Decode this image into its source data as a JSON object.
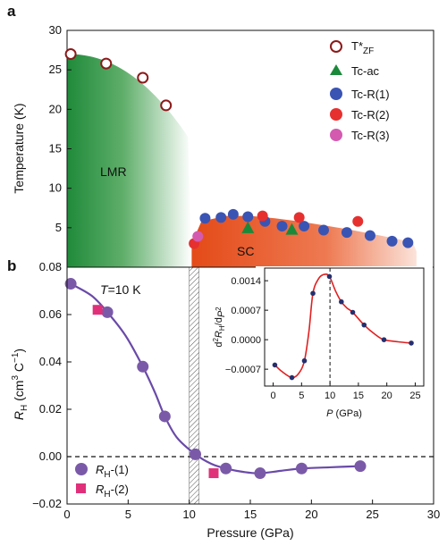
{
  "chart_data": [
    {
      "panel": "a",
      "type": "scatter",
      "ylabel": "Temperature (K)",
      "xlim": [
        0,
        30
      ],
      "ylim": [
        0,
        30
      ],
      "yticks": [
        5,
        10,
        15,
        20,
        25,
        30
      ],
      "regions": [
        {
          "label": "LMR",
          "color": "#2e8b3c"
        },
        {
          "label": "SC",
          "color": "#e8541e"
        }
      ],
      "series": [
        {
          "name": "T*",
          "sub": "ZF",
          "marker": "open-circle",
          "color": "#8b1a1a",
          "x": [
            0.3,
            3.2,
            6.2,
            8.1
          ],
          "y": [
            27.0,
            25.8,
            24.0,
            20.5
          ]
        },
        {
          "name": "Tc-ac",
          "marker": "triangle",
          "color": "#1a8a3a",
          "x": [
            14.8,
            18.4
          ],
          "y": [
            5.0,
            4.8
          ]
        },
        {
          "name": "Tc-R(1)",
          "marker": "circle",
          "color": "#3a54b4",
          "x": [
            11.3,
            12.6,
            13.6,
            14.8,
            16.2,
            17.6,
            19.4,
            21.0,
            22.9,
            24.8,
            26.6,
            27.9
          ],
          "y": [
            6.2,
            6.3,
            6.7,
            6.4,
            5.8,
            5.2,
            5.2,
            4.7,
            4.4,
            4.0,
            3.3,
            3.1
          ]
        },
        {
          "name": "Tc-R(2)",
          "marker": "circle",
          "color": "#e63030",
          "x": [
            10.4,
            16.0,
            19.0,
            23.8
          ],
          "y": [
            3.0,
            6.5,
            6.3,
            5.8
          ]
        },
        {
          "name": "Tc-R(3)",
          "marker": "circle",
          "color": "#d45ab0",
          "x": [
            10.7
          ],
          "y": [
            3.9
          ]
        }
      ]
    },
    {
      "panel": "b",
      "type": "scatter",
      "xlabel": "Pressure (GPa)",
      "ylabel": "R_H (cm3 C-1)",
      "xlim": [
        0,
        30
      ],
      "ylim": [
        -0.02,
        0.08
      ],
      "xticks": [
        0,
        5,
        10,
        15,
        20,
        25,
        30
      ],
      "yticks": [
        -0.02,
        0.0,
        0.02,
        0.04,
        0.06,
        0.08
      ],
      "annotation": "T=10 K",
      "series": [
        {
          "name": "RH-(1)",
          "marker": "circle",
          "color": "#7a5aa8",
          "x": [
            0.3,
            3.3,
            6.2,
            8.0,
            10.5,
            13.0,
            15.8,
            19.2,
            24.0
          ],
          "y": [
            0.073,
            0.061,
            0.038,
            0.017,
            0.001,
            -0.005,
            -0.007,
            -0.005,
            -0.004
          ]
        },
        {
          "name": "RH-(2)",
          "marker": "square",
          "color": "#e0307a",
          "x": [
            2.5,
            12.0
          ],
          "y": [
            0.062,
            -0.007
          ]
        }
      ],
      "fit_curve": {
        "color": "#6a4aa8",
        "x": [
          0.3,
          2.0,
          3.3,
          4.8,
          6.2,
          7.2,
          8.0,
          9.0,
          10.5,
          11.8,
          13.0,
          14.5,
          15.8,
          17.5,
          19.2,
          21.5,
          24.0
        ],
        "y": [
          0.073,
          0.068,
          0.061,
          0.051,
          0.038,
          0.027,
          0.017,
          0.008,
          0.001,
          -0.003,
          -0.005,
          -0.0065,
          -0.007,
          -0.006,
          -0.005,
          -0.0045,
          -0.004
        ]
      },
      "critical_pressure_band": [
        10.0,
        10.8
      ]
    },
    {
      "panel": "inset",
      "type": "line",
      "xlabel": "P (GPa)",
      "ylabel": "d2RH/dP2",
      "xlim": [
        -1.5,
        26.5
      ],
      "ylim": [
        -0.0011,
        0.0017
      ],
      "xticks": [
        0,
        5,
        10,
        15,
        20,
        25
      ],
      "yticks": [
        -0.0007,
        0.0,
        0.0007,
        0.0014
      ],
      "ytick_labels": [
        "-0.0007",
        "0.0000",
        "0.0007",
        "0.0014"
      ],
      "marked_x": 10,
      "series": [
        {
          "name": "d2RH/dP2",
          "color": "#24306e",
          "line_color": "#e02020",
          "x": [
            0.3,
            3.3,
            5.5,
            7.0,
            9.9,
            12.0,
            14.0,
            16.0,
            19.5,
            24.3
          ],
          "y": [
            -0.0006,
            -0.0009,
            -0.0005,
            0.0011,
            0.0015,
            0.0009,
            0.00065,
            0.00035,
            0.0,
            -8e-05
          ]
        }
      ],
      "curve": {
        "x": [
          0.3,
          1.5,
          3.3,
          4.5,
          5.5,
          6.3,
          7.0,
          8.0,
          9.0,
          9.9,
          11.0,
          12.0,
          13.0,
          14.0,
          16.0,
          18.0,
          19.5,
          22.0,
          24.3
        ],
        "y": [
          -0.0006,
          -0.00075,
          -0.0009,
          -0.0008,
          -0.0005,
          0.0002,
          0.0011,
          0.00145,
          0.00155,
          0.0015,
          0.00115,
          0.0009,
          0.00075,
          0.00065,
          0.00035,
          0.00012,
          0.0,
          -5e-05,
          -8e-05
        ]
      }
    }
  ],
  "labels": {
    "panel_a": "a",
    "panel_b": "b",
    "a_ylabel": "Temperature (K)",
    "lmr": "LMR",
    "sc": "SC",
    "b_xlabel": "Pressure (GPa)",
    "b_ylabel_main": "R",
    "b_ylabel_sub": "H",
    "b_ylabel_unit": " (cm",
    "b_ylabel_unit_sup": "3",
    "b_ylabel_unit2": " C",
    "b_ylabel_unit2_sup": "−1",
    "b_ylabel_close": ")",
    "annot_T": "T",
    "annot_rest": "=10 K",
    "leg_tzf": "T*",
    "leg_tzf_sub": "ZF",
    "leg_tcac": "Tc-ac",
    "leg_tcr1": "Tc-R(1)",
    "leg_tcr2": "Tc-R(2)",
    "leg_tcr3": "Tc-R(3)",
    "leg_rh1_main": "R",
    "leg_rh1_sub": "H",
    "leg_rh1_rest": "-(1)",
    "leg_rh2_main": "R",
    "leg_rh2_sub": "H",
    "leg_rh2_rest": "-(2)",
    "inset_xlabel_p": "P",
    "inset_xlabel_rest": " (GPa)",
    "inset_ylabel": "d²R_H/dP²"
  }
}
